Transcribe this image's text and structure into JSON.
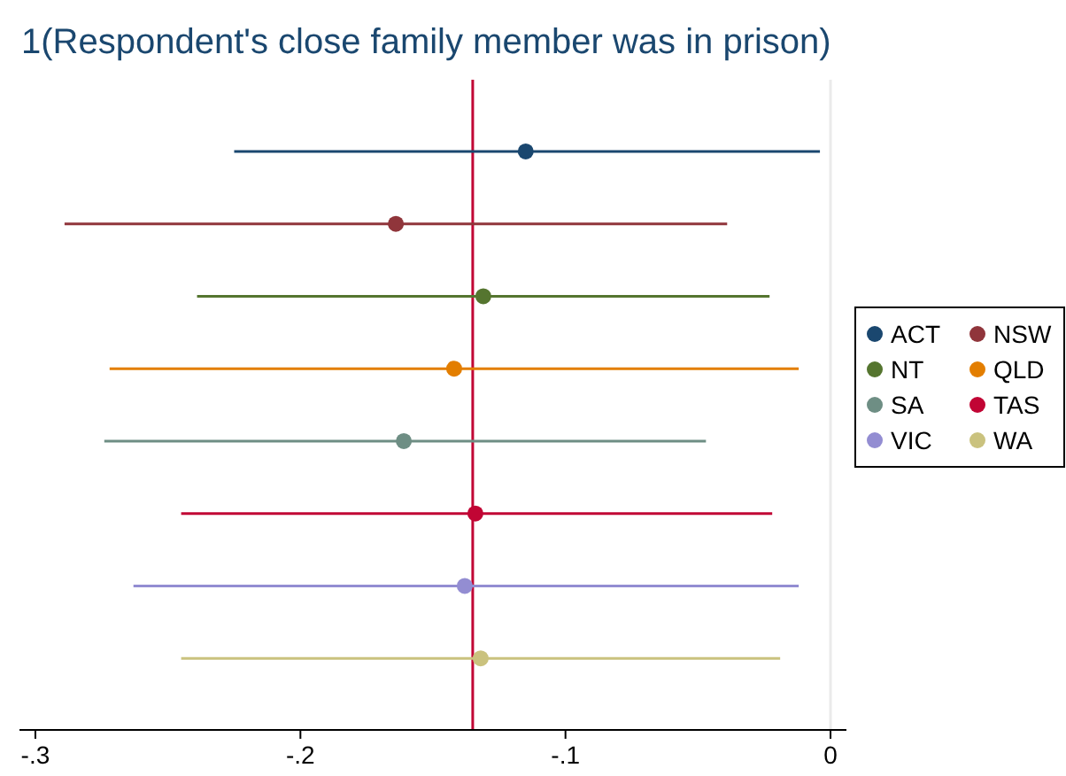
{
  "chart_data": {
    "type": "scatter",
    "orientation": "horizontal",
    "title": "1(Respondent's close family member was in prison)",
    "categories": [
      null,
      null,
      null,
      null,
      null,
      null,
      null,
      null
    ],
    "series": [
      {
        "name": "ACT",
        "color": "#1a476f",
        "values": [
          -0.115,
          null,
          null,
          null,
          null,
          null,
          null,
          null
        ],
        "errors": [
          [
            -0.225,
            -0.004
          ],
          null,
          null,
          null,
          null,
          null,
          null,
          null
        ]
      },
      {
        "name": "NSW",
        "color": "#90353b",
        "values": [
          null,
          -0.164,
          null,
          null,
          null,
          null,
          null,
          null
        ],
        "errors": [
          null,
          [
            -0.289,
            -0.039
          ],
          null,
          null,
          null,
          null,
          null,
          null
        ]
      },
      {
        "name": "NT",
        "color": "#55752f",
        "values": [
          null,
          null,
          -0.131,
          null,
          null,
          null,
          null,
          null
        ],
        "errors": [
          null,
          null,
          [
            -0.239,
            -0.023
          ],
          null,
          null,
          null,
          null,
          null
        ]
      },
      {
        "name": "QLD",
        "color": "#e37e00",
        "values": [
          null,
          null,
          null,
          -0.142,
          null,
          null,
          null,
          null
        ],
        "errors": [
          null,
          null,
          null,
          [
            -0.272,
            -0.012
          ],
          null,
          null,
          null,
          null
        ]
      },
      {
        "name": "SA",
        "color": "#6e8e84",
        "values": [
          null,
          null,
          null,
          null,
          -0.161,
          null,
          null,
          null
        ],
        "errors": [
          null,
          null,
          null,
          null,
          [
            -0.274,
            -0.047
          ],
          null,
          null,
          null
        ]
      },
      {
        "name": "TAS",
        "color": "#c10534",
        "values": [
          null,
          null,
          null,
          null,
          null,
          -0.134,
          null,
          null
        ],
        "errors": [
          null,
          null,
          null,
          null,
          null,
          [
            -0.245,
            -0.022
          ],
          null,
          null
        ]
      },
      {
        "name": "VIC",
        "color": "#938dd2",
        "values": [
          null,
          null,
          null,
          null,
          null,
          null,
          -0.138,
          null
        ],
        "errors": [
          null,
          null,
          null,
          null,
          null,
          null,
          [
            -0.263,
            -0.012
          ],
          null
        ]
      },
      {
        "name": "WA",
        "color": "#cac27e",
        "values": [
          null,
          null,
          null,
          null,
          null,
          null,
          null,
          -0.132
        ],
        "errors": [
          null,
          null,
          null,
          null,
          null,
          null,
          null,
          [
            -0.245,
            -0.019
          ]
        ]
      }
    ],
    "xlim": [
      -0.306,
      0.006
    ],
    "xticks": [
      {
        "value": -0.3,
        "label": "-.3"
      },
      {
        "value": -0.2,
        "label": "-.2"
      },
      {
        "value": -0.1,
        "label": "-.1"
      },
      0
    ],
    "ref_lines": [
      {
        "axis": "x",
        "value": -0.135,
        "color": "#c10534"
      },
      {
        "axis": "x",
        "value": 0,
        "color": "#eaeaea"
      }
    ],
    "tick_labels": "x",
    "marker": "circle",
    "legend": "right",
    "grid": false
  }
}
